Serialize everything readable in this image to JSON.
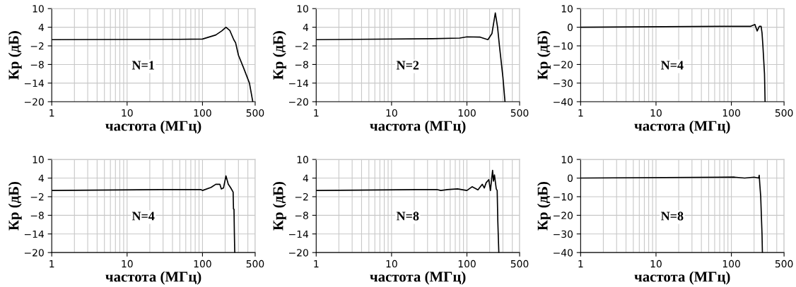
{
  "chart_data": [
    {
      "type": "line",
      "xlabel": "частота (МГц)",
      "ylabel": "Кр (дБ)",
      "annotations": [
        "N=1"
      ],
      "log": "x",
      "grid": true,
      "xlim": [
        1,
        500
      ],
      "xticks": [
        1,
        10,
        100,
        500
      ],
      "ylim": [
        -20,
        10
      ],
      "yticks": [
        -20,
        -14,
        -8,
        -2,
        4,
        10
      ],
      "series": [
        {
          "color": "#000000",
          "x": [
            1,
            50,
            100,
            150,
            180,
            205,
            230,
            260,
            275,
            300,
            350,
            420,
            465
          ],
          "values": [
            0,
            0.1,
            0.2,
            1.5,
            2.8,
            4,
            3,
            0,
            -1,
            -5,
            -9,
            -14,
            -20
          ]
        }
      ]
    },
    {
      "type": "line",
      "xlabel": "частота (МГц)",
      "ylabel": "Кр (дБ)",
      "annotations": [
        "N=2"
      ],
      "log": "x",
      "grid": true,
      "xlim": [
        1,
        500
      ],
      "xticks": [
        1,
        10,
        100,
        500
      ],
      "ylim": [
        -20,
        10
      ],
      "yticks": [
        -20,
        -14,
        -8,
        -2,
        4,
        10
      ],
      "series": [
        {
          "color": "#000000",
          "x": [
            1,
            35,
            80,
            100,
            150,
            190,
            215,
            238,
            255,
            270,
            300,
            320
          ],
          "values": [
            0,
            0.3,
            0.5,
            0.9,
            0.8,
            0,
            2,
            8.6,
            4,
            -2,
            -12,
            -20
          ]
        }
      ]
    },
    {
      "type": "line",
      "xlabel": "частота (МГц)",
      "ylabel": "Кр (дБ)",
      "annotations": [
        "N=4"
      ],
      "log": "x",
      "grid": true,
      "xlim": [
        1,
        500
      ],
      "xticks": [
        1,
        10,
        100,
        500
      ],
      "ylim": [
        -40,
        10
      ],
      "yticks": [
        -40,
        -30,
        -20,
        -10,
        0,
        10
      ],
      "series": [
        {
          "color": "#000000",
          "x": [
            1,
            115,
            180,
            205,
            220,
            235,
            248,
            255,
            262,
            275,
            280
          ],
          "values": [
            0,
            0.5,
            0.5,
            1.5,
            -2,
            0.5,
            0.5,
            -3,
            -10,
            -25,
            -40
          ]
        }
      ]
    },
    {
      "type": "line",
      "xlabel": "частота (МГц)",
      "ylabel": "Кр (дБ)",
      "annotations": [
        "N=4"
      ],
      "log": "x",
      "grid": true,
      "xlim": [
        1,
        500
      ],
      "xticks": [
        1,
        10,
        100,
        500
      ],
      "ylim": [
        -20,
        10
      ],
      "yticks": [
        -20,
        -14,
        -8,
        -2,
        4,
        10
      ],
      "series": [
        {
          "color": "#000000",
          "x": [
            1,
            27,
            95,
            100,
            130,
            150,
            170,
            178,
            190,
            205,
            220,
            235,
            255,
            258,
            262,
            265,
            268
          ],
          "values": [
            0,
            0.3,
            0.3,
            0,
            1,
            2,
            2,
            0.5,
            0.8,
            4.7,
            2,
            1,
            -0.5,
            -6,
            -6,
            -14,
            -20
          ]
        }
      ]
    },
    {
      "type": "line",
      "xlabel": "частота (МГц)",
      "ylabel": "Кр (дБ)",
      "annotations": [
        "N=8"
      ],
      "log": "x",
      "grid": true,
      "xlim": [
        1,
        500
      ],
      "xticks": [
        1,
        10,
        100,
        500
      ],
      "ylim": [
        -20,
        10
      ],
      "yticks": [
        -20,
        -14,
        -8,
        -2,
        4,
        10
      ],
      "series": [
        {
          "color": "#000000",
          "x": [
            1,
            21,
            40,
            45,
            55,
            75,
            100,
            117,
            140,
            160,
            170,
            180,
            195,
            205,
            219,
            225,
            232,
            245,
            252,
            257,
            265
          ],
          "values": [
            0,
            0.3,
            0.3,
            0,
            0.3,
            0.5,
            0,
            1.2,
            0.2,
            2,
            0.8,
            2.5,
            3.5,
            0,
            6.5,
            3,
            5,
            0.5,
            0,
            -10,
            -20
          ]
        }
      ]
    },
    {
      "type": "line",
      "xlabel": "частота (МГц)",
      "ylabel": "Кр (дБ)",
      "annotations": [
        "N=8"
      ],
      "log": "x",
      "grid": true,
      "xlim": [
        1,
        500
      ],
      "xticks": [
        1,
        10,
        100,
        500
      ],
      "ylim": [
        -40,
        10
      ],
      "yticks": [
        -40,
        -30,
        -20,
        -10,
        0,
        10
      ],
      "series": [
        {
          "color": "#000000",
          "x": [
            1,
            110,
            150,
            200,
            230,
            234,
            238,
            245,
            255,
            258
          ],
          "values": [
            0,
            0.5,
            0,
            0.5,
            0,
            1.5,
            -3,
            -10,
            -30,
            -40
          ]
        }
      ]
    }
  ]
}
